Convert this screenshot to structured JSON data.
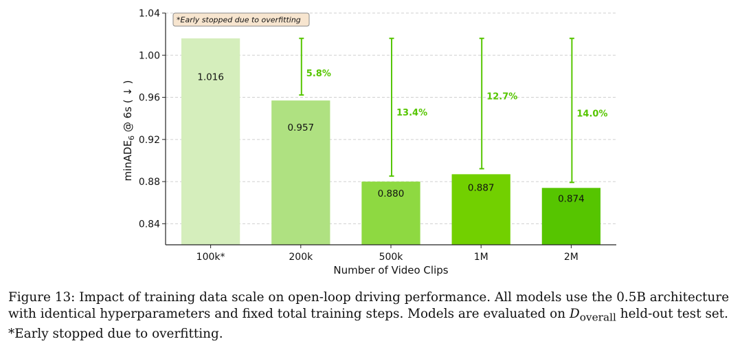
{
  "chart_data": {
    "type": "bar",
    "categories": [
      "100k*",
      "200k",
      "500k",
      "1M",
      "2M"
    ],
    "values": [
      1.016,
      0.957,
      0.88,
      0.887,
      0.874
    ],
    "value_labels": [
      "1.016",
      "0.957",
      "0.880",
      "0.887",
      "0.874"
    ],
    "bar_colors": [
      "#d5eebc",
      "#afe181",
      "#8ed941",
      "#72d000",
      "#56c500"
    ],
    "improvements": [
      {
        "category": "200k",
        "from": 1.016,
        "to": 0.957,
        "label": "5.8%"
      },
      {
        "category": "500k",
        "from": 1.016,
        "to": 0.88,
        "label": "13.4%"
      },
      {
        "category": "1M",
        "from": 1.016,
        "to": 0.887,
        "label": "12.7%"
      },
      {
        "category": "2M",
        "from": 1.016,
        "to": 0.874,
        "label": "14.0%"
      }
    ],
    "xlabel": "Number of Video Clips",
    "ylabel": "minADE",
    "ylabel_sub": "6",
    "ylabel_suffix": " @ 6s ( ↓ )",
    "ylim": [
      0.82,
      1.04
    ],
    "yticks": [
      0.84,
      0.88,
      0.92,
      0.96,
      1.0,
      1.04
    ],
    "ytick_labels": [
      "0.84",
      "0.88",
      "0.92",
      "0.96",
      "1.00",
      "1.04"
    ],
    "grid": "horizontal-dashed",
    "annotation": "*Early stopped due to overfitting",
    "accent_color": "#56c500"
  },
  "caption": {
    "line1": "Figure 13: Impact of training data scale on open-loop driving performance. All models use the 0.5B architecture",
    "line2_pre": "with identical hyperparameters and fixed total training steps. Models are evaluated on ",
    "line2_symbol": "D",
    "line2_sub": "overall",
    "line2_post": " held-out test set.",
    "line3": "*Early stopped due to overfitting."
  }
}
